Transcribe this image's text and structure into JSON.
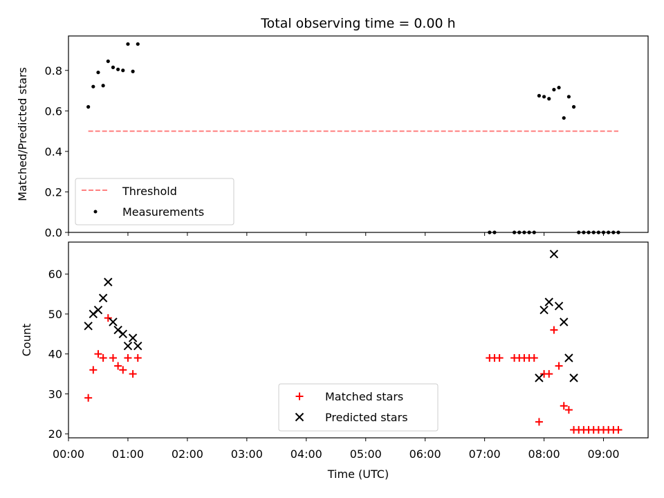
{
  "chart_data": [
    {
      "type": "scatter",
      "title": "Total observing time = 0.00 h",
      "xlabel": "",
      "ylabel": "Matched/Predicted stars",
      "xlim": [
        "00:00",
        "09:45"
      ],
      "ylim": [
        0,
        0.97
      ],
      "yticks": [
        0.0,
        0.2,
        0.4,
        0.6,
        0.8
      ],
      "legend": {
        "placement": "lower-left",
        "entries": [
          "Threshold",
          "Measurements"
        ]
      },
      "threshold": {
        "name": "Threshold",
        "value": 0.5,
        "x_start": "00:20",
        "x_end": "09:15",
        "color": "#ff7f7f",
        "style": "dashed"
      },
      "series": [
        {
          "name": "Measurements",
          "color": "#000000",
          "marker": "dot",
          "x": [
            "00:20",
            "00:25",
            "00:30",
            "00:35",
            "00:40",
            "00:45",
            "00:50",
            "00:55",
            "01:00",
            "01:05",
            "01:10",
            "07:05",
            "07:10",
            "07:30",
            "07:35",
            "07:40",
            "07:45",
            "07:50",
            "07:55",
            "08:00",
            "08:05",
            "08:10",
            "08:15",
            "08:20",
            "08:25",
            "08:30",
            "08:35",
            "08:40",
            "08:45",
            "08:50",
            "08:55",
            "09:00",
            "09:05",
            "09:10",
            "09:15"
          ],
          "y": [
            0.62,
            0.72,
            0.79,
            0.725,
            0.845,
            0.815,
            0.805,
            0.8,
            0.93,
            0.795,
            0.93,
            0.0,
            0.0,
            0.0,
            0.0,
            0.0,
            0.0,
            0.0,
            0.675,
            0.67,
            0.66,
            0.705,
            0.715,
            0.565,
            0.67,
            0.62,
            0.0,
            0.0,
            0.0,
            0.0,
            0.0,
            0.0,
            0.0,
            0.0,
            0.0
          ]
        }
      ]
    },
    {
      "type": "scatter",
      "title": "",
      "xlabel": "Time (UTC)",
      "ylabel": "Count",
      "xlim": [
        "00:00",
        "09:45"
      ],
      "ylim": [
        19,
        68
      ],
      "yticks": [
        20,
        30,
        40,
        50,
        60
      ],
      "xticks": [
        "00:00",
        "01:00",
        "02:00",
        "03:00",
        "04:00",
        "05:00",
        "06:00",
        "07:00",
        "08:00",
        "09:00"
      ],
      "legend": {
        "placement": "lower-center",
        "entries": [
          "Matched stars",
          "Predicted stars"
        ]
      },
      "series": [
        {
          "name": "Matched stars",
          "color": "#ff0000",
          "marker": "plus",
          "x": [
            "00:20",
            "00:25",
            "00:30",
            "00:35",
            "00:40",
            "00:45",
            "00:50",
            "00:55",
            "01:00",
            "01:05",
            "01:10",
            "07:05",
            "07:10",
            "07:15",
            "07:30",
            "07:35",
            "07:40",
            "07:45",
            "07:50",
            "07:55",
            "08:00",
            "08:05",
            "08:10",
            "08:15",
            "08:20",
            "08:25",
            "08:30",
            "08:35",
            "08:40",
            "08:45",
            "08:50",
            "08:55",
            "09:00",
            "09:05",
            "09:10",
            "09:15"
          ],
          "y": [
            29,
            36,
            40,
            39,
            49,
            39,
            37,
            36,
            39,
            35,
            39,
            39,
            39,
            39,
            39,
            39,
            39,
            39,
            39,
            23,
            35,
            35,
            46,
            37,
            27,
            26,
            21,
            21,
            21,
            21,
            21,
            21,
            21,
            21,
            21,
            21
          ]
        },
        {
          "name": "Predicted stars",
          "color": "#000000",
          "marker": "x",
          "x": [
            "00:20",
            "00:25",
            "00:30",
            "00:35",
            "00:40",
            "00:45",
            "00:50",
            "00:55",
            "01:00",
            "01:05",
            "01:10",
            "07:55",
            "08:00",
            "08:05",
            "08:10",
            "08:15",
            "08:20",
            "08:25",
            "08:30"
          ],
          "y": [
            47,
            50,
            51,
            54,
            58,
            48,
            46,
            45,
            42,
            44,
            42,
            34,
            51,
            53,
            65,
            52,
            48,
            39,
            34
          ]
        }
      ]
    }
  ]
}
